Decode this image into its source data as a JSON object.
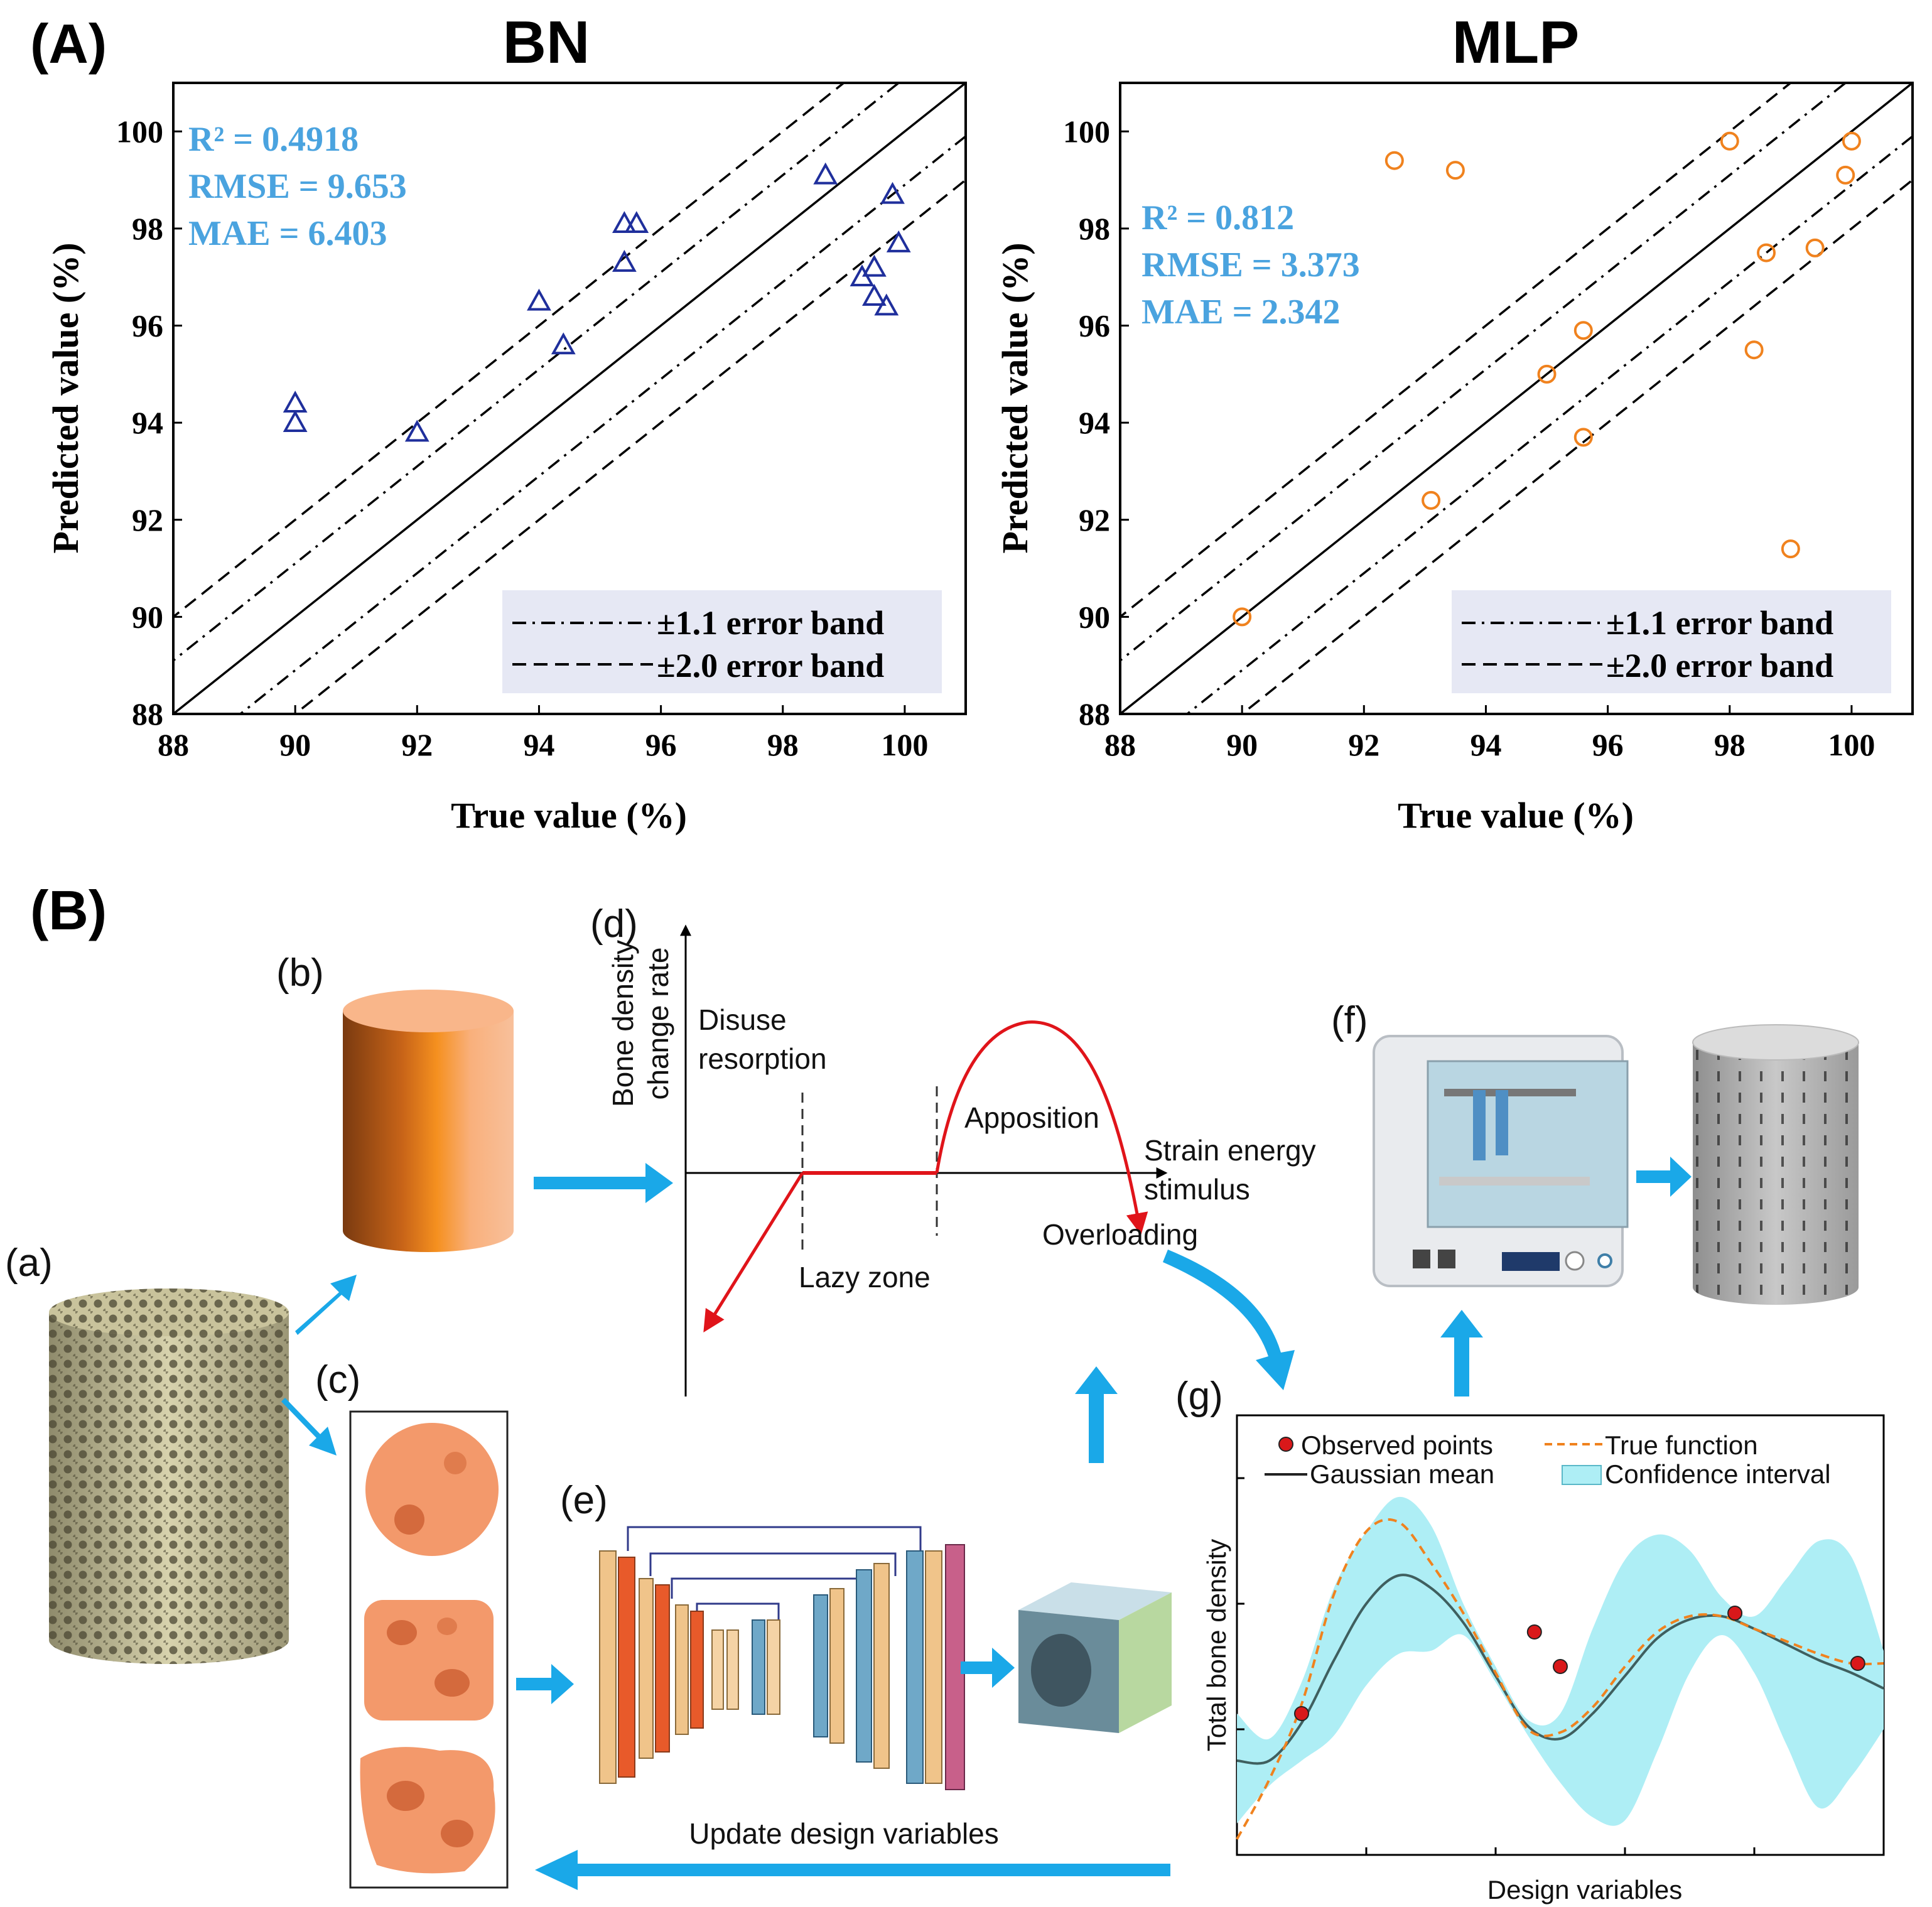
{
  "figure": {
    "panel_A": "(A)",
    "panel_B": "(B)"
  },
  "chart_data": [
    {
      "type": "scatter",
      "title": "BN",
      "xlabel": "True value (%)",
      "ylabel": "Predicted value (%)",
      "xlim": [
        88,
        101
      ],
      "ylim": [
        88,
        101
      ],
      "xticks": [
        "88",
        "90",
        "92",
        "94",
        "96",
        "98",
        "100"
      ],
      "yticks": [
        "88",
        "90",
        "92",
        "94",
        "96",
        "98",
        "100"
      ],
      "marker": "triangle",
      "color": "#1f2f9c",
      "stats": [
        "R² = 0.4918",
        "RMSE = 9.653",
        "MAE = 6.403"
      ],
      "legend": [
        "±1.1 error band",
        "±2.0 error band"
      ],
      "x": [
        90,
        90,
        92,
        94,
        94.4,
        95.4,
        95.4,
        95.6,
        98.7,
        99.3,
        99.5,
        99.5,
        99.7,
        99.8,
        99.9
      ],
      "y": [
        94.4,
        94.0,
        93.8,
        96.5,
        95.6,
        98.1,
        97.3,
        98.1,
        99.1,
        97.0,
        97.2,
        96.6,
        96.4,
        98.7,
        97.7
      ]
    },
    {
      "type": "scatter",
      "title": "MLP",
      "xlabel": "True value (%)",
      "ylabel": "Predicted value (%)",
      "xlim": [
        88,
        101
      ],
      "ylim": [
        88,
        101
      ],
      "xticks": [
        "88",
        "90",
        "92",
        "94",
        "96",
        "98",
        "100"
      ],
      "yticks": [
        "88",
        "90",
        "92",
        "94",
        "96",
        "98",
        "100"
      ],
      "marker": "circle",
      "color": "#f0821e",
      "stats": [
        "R² = 0.812",
        "RMSE = 3.373",
        "MAE = 2.342"
      ],
      "legend": [
        "±1.1 error band",
        "±2.0 error band"
      ],
      "x": [
        90,
        92.5,
        93.1,
        93.5,
        95,
        95.6,
        95.6,
        98,
        98.4,
        98.6,
        99,
        99.4,
        99.9,
        100
      ],
      "y": [
        90,
        99.4,
        92.4,
        99.2,
        95,
        95.9,
        93.7,
        99.8,
        95.5,
        97.5,
        91.4,
        97.6,
        99.1,
        99.8
      ]
    },
    {
      "type": "line",
      "title": "",
      "xlabel": "Design variables",
      "ylabel": "Total bone density",
      "legend": [
        "Observed points",
        "True function",
        "Gaussian mean",
        "Confidence interval"
      ],
      "x": [
        0,
        0.5,
        1,
        1.5,
        2,
        2.5,
        3,
        3.5,
        4,
        4.5,
        5,
        5.5,
        6,
        6.5,
        7,
        7.5,
        8,
        8.5,
        9,
        9.5,
        10
      ],
      "true_function": [
        0.05,
        0.24,
        0.48,
        0.83,
        1.03,
        1.06,
        0.93,
        0.77,
        0.58,
        0.4,
        0.39,
        0.47,
        0.6,
        0.71,
        0.76,
        0.76,
        0.72,
        0.68,
        0.64,
        0.61,
        0.61
      ],
      "gaussian_mean": [
        0.3,
        0.3,
        0.42,
        0.62,
        0.8,
        0.89,
        0.85,
        0.74,
        0.57,
        0.41,
        0.37,
        0.45,
        0.57,
        0.69,
        0.75,
        0.76,
        0.72,
        0.67,
        0.62,
        0.58,
        0.53
      ],
      "ci_upper": [
        0.45,
        0.37,
        0.55,
        0.85,
        1.03,
        1.14,
        1.05,
        0.8,
        0.6,
        0.43,
        0.45,
        0.72,
        0.94,
        1.02,
        0.97,
        0.82,
        0.76,
        0.88,
        1.0,
        0.95,
        0.65
      ],
      "ci_lower": [
        0.1,
        0.22,
        0.3,
        0.38,
        0.54,
        0.64,
        0.65,
        0.7,
        0.55,
        0.38,
        0.23,
        0.12,
        0.11,
        0.33,
        0.58,
        0.7,
        0.58,
        0.35,
        0.15,
        0.25,
        0.4
      ],
      "observed_x": [
        1.0,
        4.6,
        5.0,
        9.6
      ],
      "observed_y": [
        0.45,
        0.71,
        0.6,
        0.61
      ],
      "observed_x2": [
        7.7
      ],
      "observed_y2": [
        0.77
      ]
    }
  ],
  "diagram": {
    "labels": {
      "a": "(a)",
      "b": "(b)",
      "c": "(c)",
      "d": "(d)",
      "e": "(e)",
      "f": "(f)",
      "g": "(g)"
    },
    "d_chart": {
      "ylabel_line1": "Bone density",
      "ylabel_line2": "change rate",
      "disuse_line1": "Disuse",
      "disuse_line2": "resorption",
      "lazy": "Lazy zone",
      "apposition": "Apposition",
      "strain_line1": "Strain energy",
      "strain_line2": "stimulus",
      "overloading": "Overloading"
    },
    "update_text": "Update design variables"
  },
  "colors": {
    "arrow": "#1aa8e8",
    "legend_box": "#e6e8f4",
    "stats": "#4aa3df",
    "bn_marker": "#1f2f9c",
    "mlp_marker": "#f0821e",
    "orange_part": "#f3996b",
    "ci_fill": "#aeeef5",
    "gauss_line": "#3f5f5f",
    "true_line": "#f0821e",
    "obs_point": "#d9181a"
  }
}
